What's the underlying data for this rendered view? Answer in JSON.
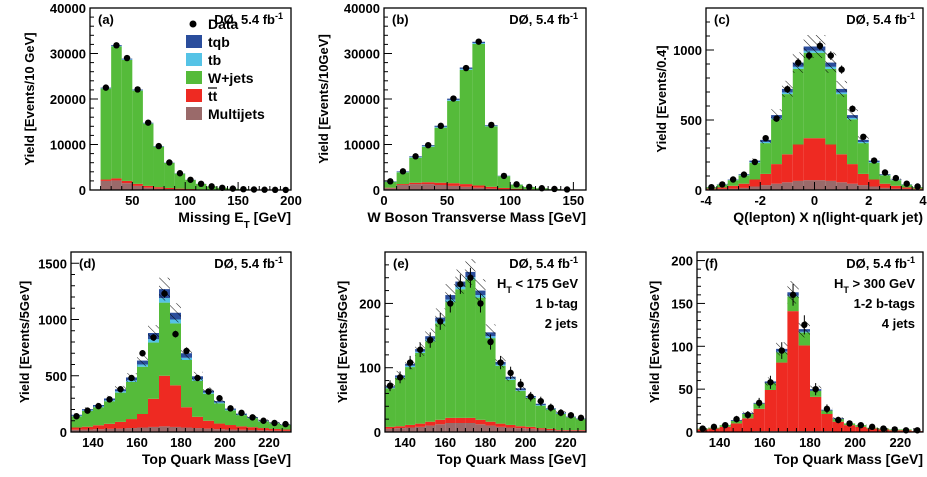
{
  "colors": {
    "tqb": "#2a4d9c",
    "tb": "#55c3e6",
    "wjets": "#55bb3a",
    "ttbar": "#ee2a22",
    "multijets": "#9a6a6a",
    "data": "#000000",
    "uncertainty_hatch": "#000000"
  },
  "chart_data": [
    {
      "type": "bar",
      "panel": "(a)",
      "experiment": "DØ,  5.4 fb",
      "lumi_exp": "-1",
      "xlabel": "Missing E",
      "xlabel_sub": "T",
      "xlabel_unit": " [GeV]",
      "ylabel": "Yield [Events/10 GeV]",
      "xlim": [
        10,
        200
      ],
      "ylim": [
        0,
        40000
      ],
      "xticks": [
        50,
        100,
        150,
        200
      ],
      "yticks": [
        0,
        10000,
        20000,
        30000,
        40000
      ],
      "bin_edges": [
        20,
        30,
        40,
        50,
        60,
        70,
        80,
        90,
        100,
        110,
        120,
        130,
        140,
        150,
        160,
        170,
        180,
        190,
        200
      ],
      "stack": {
        "multijets": [
          2000,
          2100,
          1500,
          900,
          500,
          300,
          200,
          120,
          80,
          50,
          30,
          20,
          10,
          8,
          5,
          3,
          2,
          1
        ],
        "ttbar": [
          300,
          450,
          500,
          450,
          400,
          320,
          250,
          180,
          130,
          90,
          60,
          40,
          30,
          20,
          12,
          8,
          5,
          3
        ],
        "wjets": [
          20000,
          29000,
          26600,
          20500,
          13700,
          8900,
          5500,
          3300,
          2000,
          1200,
          700,
          420,
          250,
          150,
          90,
          50,
          30,
          20
        ],
        "tb": [
          80,
          120,
          110,
          90,
          70,
          50,
          35,
          25,
          15,
          10,
          6,
          4,
          3,
          2,
          1,
          1,
          0,
          0
        ],
        "tqb": [
          120,
          180,
          170,
          140,
          110,
          80,
          55,
          40,
          25,
          15,
          10,
          6,
          4,
          2,
          2,
          1,
          1,
          0
        ]
      },
      "data_points": {
        "x": [
          25,
          35,
          45,
          55,
          65,
          75,
          85,
          95,
          105,
          115,
          125,
          135,
          145,
          155,
          165,
          175,
          185,
          195
        ],
        "y": [
          22500,
          31800,
          29000,
          22100,
          14800,
          9650,
          6050,
          3680,
          2250,
          1360,
          800,
          490,
          300,
          180,
          110,
          60,
          38,
          22
        ]
      },
      "legend": {
        "placement": "top-center",
        "entries": [
          {
            "key": "data",
            "label": "Data"
          },
          {
            "key": "tqb",
            "label": "tqb"
          },
          {
            "key": "tb",
            "label": "tb"
          },
          {
            "key": "wjets",
            "label": "W+jets"
          },
          {
            "key": "ttbar",
            "label": "tt"
          },
          {
            "key": "multijets",
            "label": "Multijets"
          }
        ]
      },
      "hatched_uncertainty": false
    },
    {
      "type": "bar",
      "panel": "(b)",
      "experiment": "DØ,  5.4 fb",
      "lumi_exp": "-1",
      "xlabel": "W Boson Transverse Mass [GeV]",
      "ylabel": "Yield [Events/10GeV]",
      "xlim": [
        0,
        160
      ],
      "ylim": [
        0,
        40000
      ],
      "xticks": [
        0,
        50,
        100,
        150
      ],
      "yticks": [
        0,
        10000,
        20000,
        30000,
        40000
      ],
      "bin_edges": [
        0,
        10,
        20,
        30,
        40,
        50,
        60,
        70,
        80,
        90,
        100,
        110,
        120,
        130,
        140,
        150
      ],
      "stack": {
        "multijets": [
          400,
          1100,
          1300,
          1300,
          1100,
          900,
          700,
          500,
          300,
          150,
          80,
          40,
          20,
          10,
          5
        ],
        "ttbar": [
          100,
          200,
          300,
          400,
          500,
          600,
          600,
          500,
          400,
          300,
          200,
          120,
          80,
          50,
          30
        ],
        "wjets": [
          1300,
          2600,
          5500,
          7800,
          12100,
          18100,
          25100,
          31100,
          13300,
          2600,
          900,
          500,
          280,
          160,
          80
        ],
        "tb": [
          50,
          80,
          120,
          150,
          180,
          200,
          220,
          200,
          100,
          40,
          20,
          10,
          5,
          3,
          2
        ],
        "tqb": [
          70,
          120,
          180,
          200,
          240,
          280,
          300,
          280,
          150,
          50,
          25,
          12,
          6,
          3,
          2
        ]
      },
      "data_points": {
        "x": [
          5,
          15,
          25,
          35,
          45,
          55,
          65,
          75,
          85,
          95,
          105,
          115,
          125,
          135,
          145
        ],
        "y": [
          1900,
          4100,
          7400,
          9850,
          14100,
          20100,
          26800,
          32600,
          14300,
          3100,
          1250,
          680,
          390,
          230,
          120
        ]
      },
      "hatched_uncertainty": false
    },
    {
      "type": "bar",
      "panel": "(c)",
      "experiment": "DØ,  5.4 fb",
      "lumi_exp": "-1",
      "xlabel": "Q(lepton) X η(light-quark jet)",
      "ylabel": "Yield [Events/0.4]",
      "xlim": [
        -4,
        4
      ],
      "ylim": [
        0,
        1300
      ],
      "xticks": [
        -4,
        -2,
        0,
        2,
        4
      ],
      "yticks": [
        0,
        500,
        1000
      ],
      "bin_edges": [
        -4.0,
        -3.6,
        -3.2,
        -2.8,
        -2.4,
        -2.0,
        -1.6,
        -1.2,
        -0.8,
        -0.4,
        0.0,
        0.4,
        0.8,
        1.2,
        1.6,
        2.0,
        2.4,
        2.8,
        3.2,
        3.6,
        4.0
      ],
      "stack": {
        "multijets": [
          5,
          8,
          10,
          15,
          25,
          35,
          45,
          55,
          65,
          70,
          70,
          65,
          55,
          45,
          35,
          25,
          15,
          10,
          8,
          5
        ],
        "ttbar": [
          5,
          10,
          20,
          30,
          50,
          80,
          140,
          200,
          260,
          300,
          300,
          260,
          200,
          140,
          80,
          50,
          30,
          20,
          10,
          5
        ],
        "wjets": [
          10,
          20,
          40,
          60,
          120,
          220,
          320,
          430,
          540,
          610,
          610,
          540,
          430,
          320,
          220,
          120,
          60,
          40,
          20,
          10
        ],
        "tb": [
          0,
          1,
          2,
          3,
          5,
          8,
          10,
          12,
          15,
          15,
          15,
          15,
          12,
          10,
          8,
          5,
          3,
          2,
          1,
          0
        ],
        "tqb": [
          1,
          2,
          3,
          5,
          10,
          15,
          20,
          25,
          30,
          30,
          30,
          30,
          25,
          20,
          15,
          10,
          5,
          3,
          2,
          1
        ]
      },
      "data_points": {
        "x": [
          -3.8,
          -3.4,
          -3.0,
          -2.6,
          -2.2,
          -1.8,
          -1.4,
          -1.0,
          -0.6,
          -0.2,
          0.2,
          0.6,
          1.0,
          1.4,
          1.8,
          2.2,
          2.6,
          3.0,
          3.4,
          3.8
        ],
        "y": [
          20,
          40,
          75,
          110,
          200,
          370,
          510,
          720,
          910,
          960,
          1030,
          960,
          860,
          580,
          380,
          210,
          125,
          85,
          45,
          25
        ]
      },
      "hatched_uncertainty": true
    },
    {
      "type": "bar",
      "panel": "(d)",
      "experiment": "DØ,  5.4 fb",
      "lumi_exp": "-1",
      "xlabel": "Top Quark Mass [GeV]",
      "ylabel": "Yield [Events/5GeV]",
      "xlim": [
        130,
        230
      ],
      "ylim": [
        0,
        1600
      ],
      "xticks": [
        140,
        160,
        180,
        200,
        220
      ],
      "yticks": [
        0,
        500,
        1000,
        1500
      ],
      "bin_edges": [
        130,
        135,
        140,
        145,
        150,
        155,
        160,
        165,
        170,
        175,
        180,
        185,
        190,
        195,
        200,
        205,
        210,
        215,
        220,
        225,
        230
      ],
      "stack": {
        "multijets": [
          20,
          22,
          25,
          28,
          30,
          35,
          40,
          45,
          50,
          45,
          40,
          35,
          30,
          25,
          22,
          20,
          18,
          15,
          12,
          10
        ],
        "ttbar": [
          20,
          25,
          35,
          45,
          60,
          80,
          120,
          250,
          450,
          370,
          180,
          100,
          70,
          50,
          40,
          30,
          25,
          20,
          15,
          12
        ],
        "wjets": [
          100,
          140,
          160,
          200,
          260,
          330,
          420,
          500,
          650,
          550,
          420,
          320,
          240,
          180,
          130,
          100,
          80,
          60,
          50,
          40
        ],
        "tb": [
          5,
          6,
          8,
          10,
          12,
          15,
          20,
          30,
          40,
          35,
          20,
          15,
          10,
          8,
          6,
          5,
          4,
          3,
          2,
          2
        ],
        "tqb": [
          8,
          10,
          12,
          15,
          18,
          25,
          35,
          55,
          80,
          60,
          40,
          25,
          18,
          12,
          10,
          8,
          6,
          5,
          4,
          3
        ]
      },
      "data_points": {
        "x": [
          132.5,
          137.5,
          142.5,
          147.5,
          152.5,
          157.5,
          162.5,
          167.5,
          172.5,
          177.5,
          182.5,
          187.5,
          192.5,
          197.5,
          202.5,
          207.5,
          212.5,
          217.5,
          222.5,
          227.5
        ],
        "y": [
          140,
          190,
          230,
          290,
          380,
          480,
          700,
          840,
          1230,
          870,
          720,
          480,
          360,
          300,
          210,
          170,
          130,
          100,
          80,
          70
        ]
      },
      "hatched_uncertainty": true
    },
    {
      "type": "bar",
      "panel": "(e)",
      "experiment": "DØ,  5.4 fb",
      "lumi_exp": "-1",
      "annotations": [
        "H",
        "T",
        " < 175 GeV",
        "1 b-tag",
        "2 jets"
      ],
      "xlabel": "Top Quark Mass [GeV]",
      "ylabel": "Yield [Events/5GeV]",
      "xlim": [
        130,
        230
      ],
      "ylim": [
        0,
        280
      ],
      "xticks": [
        140,
        160,
        180,
        200,
        220
      ],
      "yticks": [
        0,
        100,
        200
      ],
      "bin_edges": [
        130,
        135,
        140,
        145,
        150,
        155,
        160,
        165,
        170,
        175,
        180,
        185,
        190,
        195,
        200,
        205,
        210,
        215,
        220,
        225,
        230
      ],
      "stack": {
        "multijets": [
          5,
          6,
          7,
          8,
          10,
          12,
          14,
          14,
          14,
          12,
          10,
          8,
          7,
          6,
          5,
          4,
          3,
          2,
          2,
          2
        ],
        "ttbar": [
          3,
          3,
          4,
          5,
          6,
          7,
          8,
          8,
          8,
          7,
          6,
          5,
          4,
          3,
          3,
          2,
          2,
          1,
          1,
          1
        ],
        "wjets": [
          60,
          75,
          90,
          110,
          125,
          150,
          180,
          200,
          215,
          190,
          130,
          90,
          70,
          55,
          45,
          35,
          30,
          25,
          20,
          17
        ],
        "tb": [
          1,
          1,
          2,
          2,
          3,
          3,
          4,
          4,
          4,
          4,
          3,
          2,
          2,
          1,
          1,
          1,
          1,
          1,
          0,
          0
        ],
        "tqb": [
          2,
          3,
          3,
          4,
          5,
          6,
          7,
          8,
          8,
          7,
          6,
          4,
          3,
          3,
          2,
          2,
          1,
          1,
          1,
          1
        ]
      },
      "data_points": {
        "x": [
          132.5,
          137.5,
          142.5,
          147.5,
          152.5,
          157.5,
          162.5,
          167.5,
          172.5,
          177.5,
          182.5,
          187.5,
          192.5,
          197.5,
          202.5,
          207.5,
          212.5,
          217.5,
          222.5,
          227.5
        ],
        "y": [
          72,
          85,
          108,
          128,
          143,
          172,
          200,
          230,
          240,
          200,
          140,
          108,
          92,
          74,
          55,
          48,
          38,
          30,
          26,
          22
        ]
      },
      "hatched_uncertainty": true
    },
    {
      "type": "bar",
      "panel": "(f)",
      "experiment": "DØ,  5.4 fb",
      "lumi_exp": "-1",
      "annotations": [
        "H",
        "T",
        " > 300 GeV",
        "1-2 b-tags",
        "4 jets"
      ],
      "xlabel": "Top Quark Mass [GeV]",
      "ylabel": "Yield [Events/5GeV]",
      "xlim": [
        130,
        230
      ],
      "ylim": [
        0,
        210
      ],
      "xticks": [
        140,
        160,
        180,
        200,
        220
      ],
      "yticks": [
        0,
        50,
        100,
        150,
        200
      ],
      "bin_edges": [
        130,
        135,
        140,
        145,
        150,
        155,
        160,
        165,
        170,
        175,
        180,
        185,
        190,
        195,
        200,
        205,
        210,
        215,
        220,
        225,
        230
      ],
      "stack": {
        "multijets": [
          0,
          0,
          0,
          0,
          0,
          1,
          1,
          1,
          1,
          1,
          1,
          1,
          0,
          0,
          0,
          0,
          0,
          0,
          0,
          0
        ],
        "ttbar": [
          3,
          4,
          6,
          10,
          16,
          26,
          48,
          80,
          140,
          100,
          40,
          20,
          12,
          8,
          6,
          4,
          3,
          2,
          2,
          1
        ],
        "wjets": [
          1,
          1,
          2,
          3,
          5,
          6,
          8,
          12,
          17,
          15,
          7,
          4,
          3,
          2,
          2,
          1,
          1,
          1,
          1,
          0
        ],
        "tb": [
          0,
          0,
          0,
          0,
          0,
          0,
          0,
          1,
          1,
          1,
          0,
          0,
          0,
          0,
          0,
          0,
          0,
          0,
          0,
          0
        ],
        "tqb": [
          0,
          0,
          0,
          1,
          1,
          1,
          2,
          3,
          4,
          3,
          2,
          1,
          1,
          0,
          0,
          0,
          0,
          0,
          0,
          0
        ]
      },
      "data_points": {
        "x": [
          132.5,
          137.5,
          142.5,
          147.5,
          152.5,
          157.5,
          162.5,
          167.5,
          172.5,
          177.5,
          182.5,
          187.5,
          192.5,
          197.5,
          202.5,
          207.5,
          212.5,
          217.5,
          222.5,
          227.5
        ],
        "y": [
          4,
          6,
          8,
          15,
          20,
          34,
          58,
          95,
          160,
          125,
          50,
          27,
          14,
          10,
          8,
          6,
          4,
          3,
          2,
          2
        ]
      },
      "hatched_uncertainty": true
    }
  ]
}
